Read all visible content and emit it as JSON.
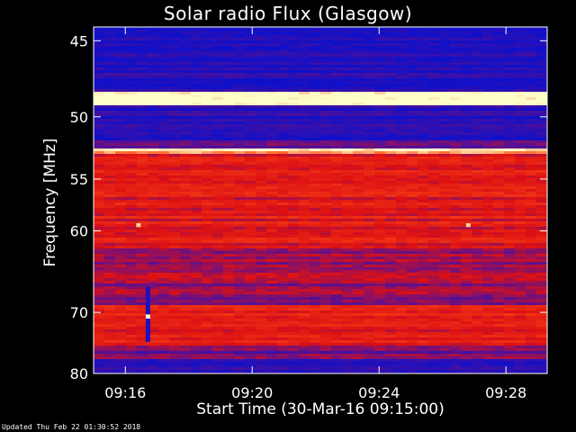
{
  "footer_text": "Updated Thu Feb 22 01:30:52 2018",
  "colors": {
    "background": "#000000",
    "axis": "#ffffff",
    "low": "#1010c8",
    "mid": "#c80000",
    "high": "#ffff80"
  },
  "chart_data": {
    "type": "heatmap",
    "title": "Solar radio Flux (Glasgow)",
    "xlabel": "Start Time (30-Mar-16 09:15:00)",
    "ylabel": "Frequency [MHz]",
    "x_ticks": [
      "09:16",
      "09:20",
      "09:24",
      "09:28"
    ],
    "x_tick_minutes": [
      16,
      20,
      24,
      28
    ],
    "x_range_minutes": [
      15.0,
      29.3
    ],
    "y_ticks": [
      45,
      50,
      55,
      60,
      70,
      80
    ],
    "y_range_mhz": [
      44.2,
      80.0
    ],
    "y_scale": "reciprocal",
    "colormap": "blue-red-yellow",
    "bands_mhz": [
      {
        "from": 44.2,
        "to": 48.2,
        "level": 0.08
      },
      {
        "from": 48.2,
        "to": 49.2,
        "level": 0.98
      },
      {
        "from": 49.2,
        "to": 51.8,
        "level": 0.1
      },
      {
        "from": 51.8,
        "to": 52.5,
        "level": 0.3
      },
      {
        "from": 52.5,
        "to": 52.9,
        "level": 0.95
      },
      {
        "from": 52.9,
        "to": 53.3,
        "level": 0.55
      },
      {
        "from": 53.3,
        "to": 62.0,
        "level": 0.55
      },
      {
        "from": 62.0,
        "to": 66.0,
        "level": 0.42
      },
      {
        "from": 66.0,
        "to": 69.0,
        "level": 0.38
      },
      {
        "from": 69.0,
        "to": 75.0,
        "level": 0.55
      },
      {
        "from": 75.0,
        "to": 77.5,
        "level": 0.3
      },
      {
        "from": 77.5,
        "to": 80.0,
        "level": 0.12
      }
    ],
    "features": [
      {
        "minute": 16.7,
        "from_mhz": 66.5,
        "to_mhz": 74.5,
        "level": 0.05
      },
      {
        "minute": 16.7,
        "from_mhz": 70.3,
        "to_mhz": 70.9,
        "level": 1.0
      },
      {
        "minute": 16.4,
        "from_mhz": 59.2,
        "to_mhz": 59.6,
        "level": 0.95
      },
      {
        "minute": 26.8,
        "from_mhz": 59.2,
        "to_mhz": 59.6,
        "level": 0.95
      }
    ]
  }
}
